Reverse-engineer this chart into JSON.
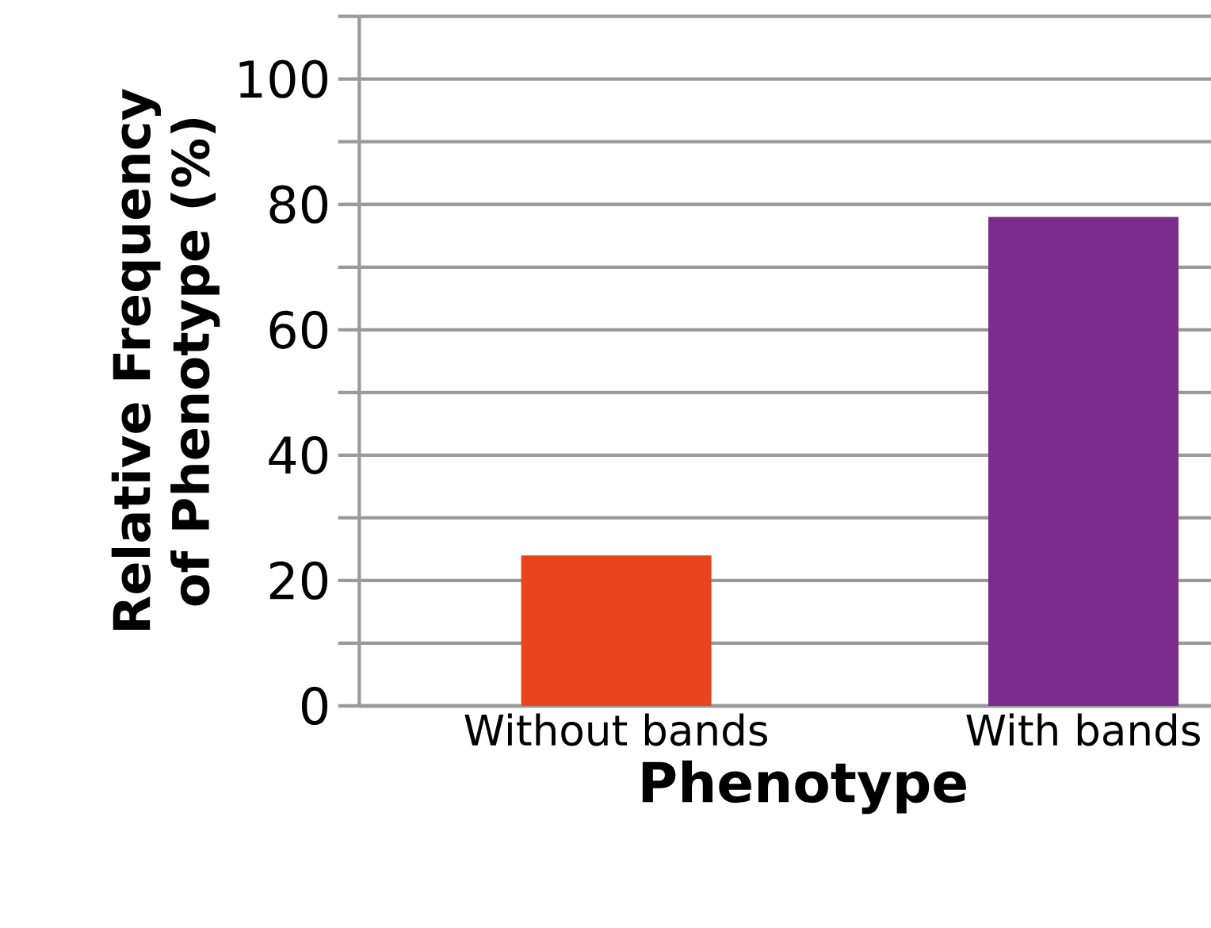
{
  "chart_data": {
    "type": "bar",
    "xlabel": "Phenotype",
    "ylabel": "Relative Frequency of Phenotype (%)",
    "categories": [
      "Without bands",
      "With bands"
    ],
    "values": [
      24,
      78
    ],
    "colors": [
      "#e8451e",
      "#7b2d8e"
    ],
    "ylim": [
      0,
      110
    ],
    "yticks": [
      0,
      {
        "value": 10,
        "label": null
      },
      20,
      {
        "value": 30,
        "label": null
      },
      40,
      {
        "value": 50,
        "label": null
      },
      60,
      {
        "value": 70,
        "label": null
      },
      80,
      {
        "value": 90,
        "label": null
      },
      100,
      {
        "value": 110,
        "label": null
      }
    ],
    "grid": "y"
  }
}
